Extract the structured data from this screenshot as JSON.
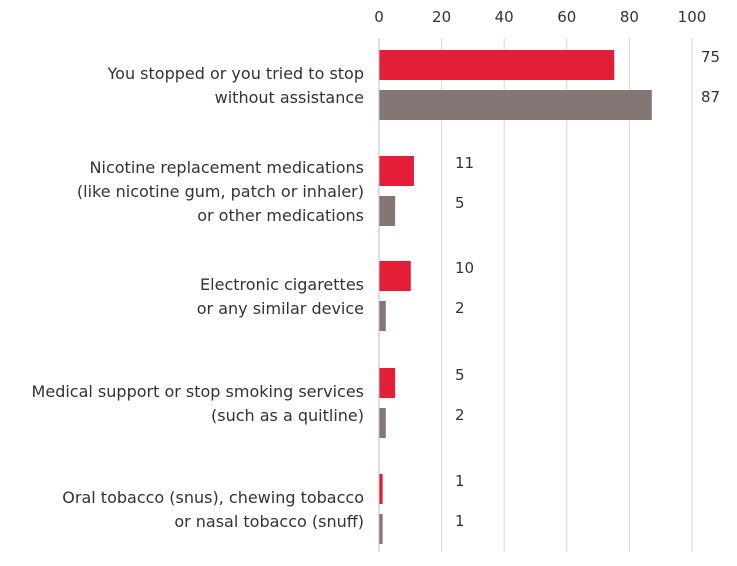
{
  "chart_data": {
    "type": "bar",
    "orientation": "horizontal",
    "categories": [
      [
        "You stopped or you tried to stop",
        "without assistance"
      ],
      [
        "Nicotine replacement medications",
        "(like nicotine gum, patch or inhaler)",
        "or other medications"
      ],
      [
        "Electronic cigarettes",
        "or any similar device"
      ],
      [
        "Medical support or stop smoking services",
        "(such as a quitline)"
      ],
      [
        "Oral tobacco (snus), chewing tobacco",
        "or nasal tobacco (snuff)"
      ]
    ],
    "series": [
      {
        "color": "#e31e36",
        "values": [
          75,
          11,
          10,
          5,
          1
        ]
      },
      {
        "color": "#857676",
        "values": [
          87,
          5,
          2,
          2,
          1
        ]
      }
    ],
    "xlim": [
      0,
      100
    ],
    "xticks": [
      0,
      20,
      40,
      60,
      80,
      100
    ],
    "tick_position": "top",
    "grid": true,
    "legend": "none"
  }
}
